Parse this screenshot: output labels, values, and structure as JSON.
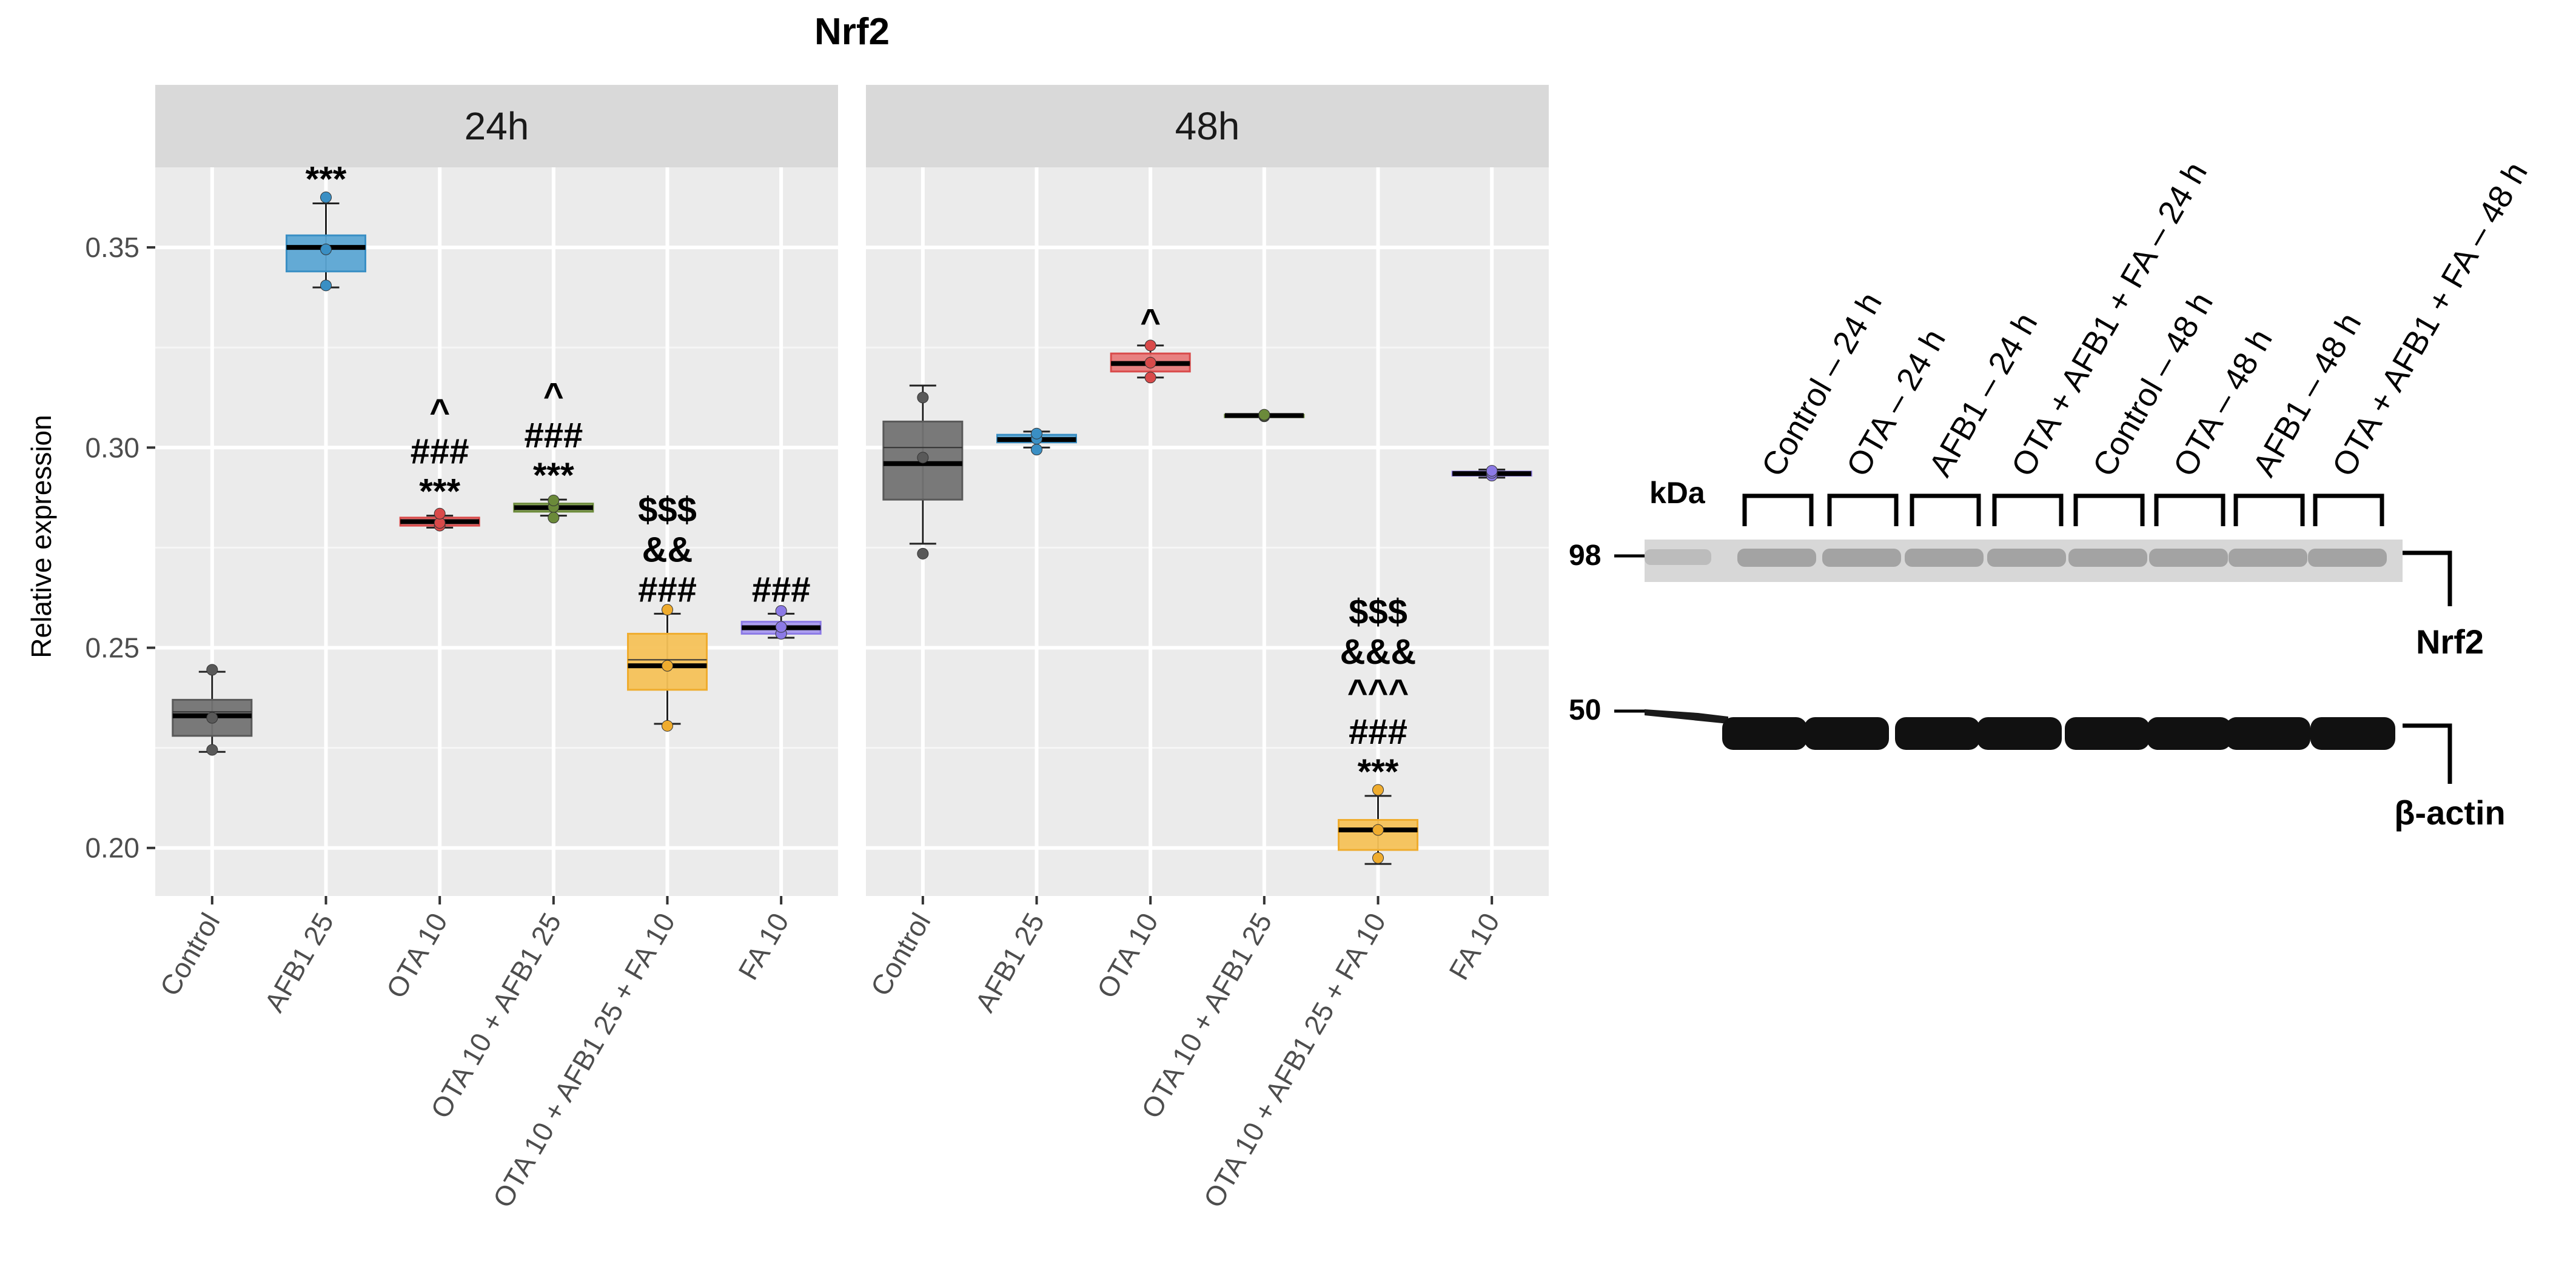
{
  "chart_data": {
    "type": "boxplot",
    "title": "Nrf2",
    "ylabel": "Relative expression",
    "xlabel": "",
    "ylim": [
      0.188,
      0.37
    ],
    "yticks": [
      0.2,
      0.25,
      0.3,
      0.35
    ],
    "ytick_labels": [
      "0.20",
      "0.25",
      "0.30",
      "0.35"
    ],
    "categories": [
      "Control",
      "AFB1 25",
      "OTA 10",
      "OTA 10 + AFB1 25",
      "OTA 10 + AFB1 25 + FA 10",
      "FA 10"
    ],
    "colors": [
      "#595959",
      "#3a8fc4",
      "#d94a4a",
      "#6b8a3a",
      "#efac2e",
      "#8c7ae6"
    ],
    "fills": [
      "#737373",
      "#5ca6d4",
      "#e87a7a",
      "#9db86a",
      "#f5c258",
      "#a99bef"
    ],
    "panels": [
      {
        "label": "24h",
        "groups": [
          {
            "category": "Control",
            "min": 0.224,
            "q1": 0.228,
            "median": 0.233,
            "mean": 0.234,
            "q3": 0.237,
            "max": 0.244,
            "points": [
              0.2245,
              0.2325,
              0.2445
            ],
            "sig": []
          },
          {
            "category": "AFB1 25",
            "min": 0.34,
            "q1": 0.344,
            "median": 0.35,
            "mean": 0.35,
            "q3": 0.353,
            "max": 0.361,
            "points": [
              0.3405,
              0.3495,
              0.3625
            ],
            "sig": [
              "***"
            ]
          },
          {
            "category": "OTA 10",
            "min": 0.28,
            "q1": 0.2805,
            "median": 0.2815,
            "mean": 0.2815,
            "q3": 0.2825,
            "max": 0.283,
            "points": [
              0.2805,
              0.2812,
              0.2835
            ],
            "sig": [
              "^",
              "###",
              "***"
            ]
          },
          {
            "category": "OTA 10 + AFB1 25",
            "min": 0.283,
            "q1": 0.284,
            "median": 0.285,
            "mean": 0.285,
            "q3": 0.286,
            "max": 0.287,
            "points": [
              0.2825,
              0.2852,
              0.2868
            ],
            "sig": [
              "^",
              "###",
              "***"
            ]
          },
          {
            "category": "OTA 10 + AFB1 25 + FA 10",
            "min": 0.231,
            "q1": 0.2395,
            "median": 0.2455,
            "mean": 0.247,
            "q3": 0.2535,
            "max": 0.2585,
            "points": [
              0.2305,
              0.2455,
              0.2595
            ],
            "sig": [
              "$$$",
              "&&",
              "###"
            ]
          },
          {
            "category": "FA 10",
            "min": 0.2525,
            "q1": 0.2535,
            "median": 0.255,
            "mean": 0.255,
            "q3": 0.2565,
            "max": 0.2585,
            "points": [
              0.2535,
              0.2552,
              0.2592
            ],
            "sig": [
              "###"
            ]
          }
        ]
      },
      {
        "label": "48h",
        "groups": [
          {
            "category": "Control",
            "min": 0.276,
            "q1": 0.287,
            "median": 0.296,
            "mean": 0.3,
            "q3": 0.3065,
            "max": 0.3155,
            "points": [
              0.2735,
              0.2975,
              0.3125
            ],
            "sig": []
          },
          {
            "category": "AFB1 25",
            "min": 0.3,
            "q1": 0.3013,
            "median": 0.302,
            "mean": 0.302,
            "q3": 0.3032,
            "max": 0.304,
            "points": [
              0.2995,
              0.3022,
              0.3035
            ],
            "sig": []
          },
          {
            "category": "OTA 10",
            "min": 0.3175,
            "q1": 0.319,
            "median": 0.321,
            "mean": 0.321,
            "q3": 0.3235,
            "max": 0.3255,
            "points": [
              0.3175,
              0.3212,
              0.3255
            ],
            "sig": [
              "^"
            ]
          },
          {
            "category": "OTA 10 + AFB1 25",
            "min": 0.3078,
            "q1": 0.3078,
            "median": 0.308,
            "mean": 0.308,
            "q3": 0.3082,
            "max": 0.3082,
            "points": [
              0.3078,
              0.308,
              0.3082
            ],
            "sig": []
          },
          {
            "category": "OTA 10 + AFB1 25 + FA 10",
            "min": 0.196,
            "q1": 0.1995,
            "median": 0.2045,
            "mean": 0.2045,
            "q3": 0.207,
            "max": 0.213,
            "points": [
              0.1975,
              0.2045,
              0.2145
            ],
            "sig": [
              "$$$",
              "&&&",
              "^^^",
              "###",
              "***"
            ]
          },
          {
            "category": "FA 10",
            "min": 0.2925,
            "q1": 0.293,
            "median": 0.2935,
            "mean": 0.2935,
            "q3": 0.294,
            "max": 0.2945,
            "points": [
              0.293,
              0.2937,
              0.2942
            ],
            "sig": []
          }
        ]
      }
    ]
  },
  "western_blot": {
    "unit_label": "kDa",
    "markers": [
      "98",
      "50"
    ],
    "lanes": [
      "Control – 24 h",
      "OTA – 24 h",
      "AFB1 – 24 h",
      "OTA + AFB1 + FA – 24 h",
      "Control – 48 h",
      "OTA – 48 h",
      "AFB1 – 48 h",
      "OTA + AFB1 + FA – 48 h"
    ],
    "bands": [
      "Nrf2",
      "β-actin"
    ]
  }
}
